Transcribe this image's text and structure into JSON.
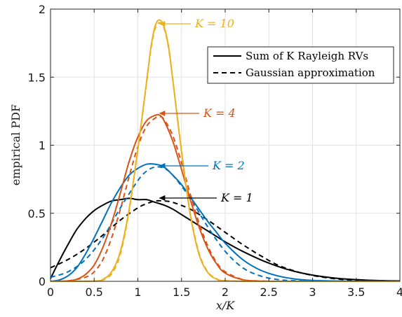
{
  "chart_data": {
    "type": "line",
    "xlabel": "x/K",
    "ylabel": "empirical PDF",
    "xlim": [
      0,
      4
    ],
    "ylim": [
      0,
      2
    ],
    "xticks": [
      0,
      0.5,
      1,
      1.5,
      2,
      2.5,
      3,
      3.5,
      4
    ],
    "xtick_labels": [
      "0",
      "0.5",
      "1",
      "1.5",
      "2",
      "2.5",
      "3",
      "3.5",
      "4"
    ],
    "yticks": [
      0,
      0.5,
      1,
      1.5,
      2
    ],
    "ytick_labels": [
      "0",
      "0.5",
      "1",
      "1.5",
      "2"
    ],
    "grid": true,
    "legend": {
      "placement": "top-right",
      "entries": [
        {
          "label": "Sum of K Rayleigh RVs",
          "style": "solid"
        },
        {
          "label": "Gaussian approximation",
          "style": "dashed"
        }
      ]
    },
    "series": [
      {
        "K": 1,
        "color": "#000000",
        "style": "solid",
        "x": [
          0,
          0.1,
          0.2,
          0.3,
          0.4,
          0.5,
          0.6,
          0.7,
          0.8,
          0.9,
          1.0,
          1.1,
          1.2,
          1.3,
          1.4,
          1.5,
          1.6,
          1.7,
          1.8,
          1.9,
          2.0,
          2.2,
          2.4,
          2.6,
          2.8,
          3.0,
          3.2,
          3.4,
          3.6,
          3.8,
          4.0
        ],
        "y": [
          0.02,
          0.15,
          0.27,
          0.38,
          0.46,
          0.52,
          0.56,
          0.59,
          0.6,
          0.61,
          0.6,
          0.6,
          0.58,
          0.56,
          0.53,
          0.49,
          0.45,
          0.41,
          0.37,
          0.33,
          0.29,
          0.22,
          0.16,
          0.11,
          0.072,
          0.046,
          0.028,
          0.016,
          0.009,
          0.005,
          0.003
        ]
      },
      {
        "K": 1,
        "color": "#000000",
        "style": "dashed",
        "x": [
          0,
          0.2,
          0.4,
          0.6,
          0.8,
          1.0,
          1.1,
          1.2,
          1.3,
          1.4,
          1.6,
          1.8,
          2.0,
          2.2,
          2.4,
          2.6,
          2.8,
          3.0,
          3.2,
          3.4,
          3.6,
          3.8,
          4.0
        ],
        "y": [
          0.1,
          0.16,
          0.24,
          0.34,
          0.45,
          0.54,
          0.57,
          0.59,
          0.59,
          0.58,
          0.53,
          0.45,
          0.36,
          0.27,
          0.19,
          0.12,
          0.075,
          0.043,
          0.023,
          0.011,
          0.005,
          0.002,
          0.001
        ]
      },
      {
        "K": 2,
        "color": "#0072BD",
        "style": "solid",
        "x": [
          0,
          0.1,
          0.2,
          0.3,
          0.4,
          0.5,
          0.6,
          0.7,
          0.8,
          0.9,
          1.0,
          1.1,
          1.2,
          1.3,
          1.4,
          1.5,
          1.6,
          1.7,
          1.8,
          1.9,
          2.0,
          2.2,
          2.4,
          2.6,
          2.8,
          3.0,
          3.2,
          3.4,
          3.6,
          4.0
        ],
        "y": [
          0.0,
          0.01,
          0.04,
          0.1,
          0.2,
          0.32,
          0.45,
          0.58,
          0.69,
          0.78,
          0.83,
          0.86,
          0.86,
          0.84,
          0.78,
          0.71,
          0.62,
          0.53,
          0.44,
          0.36,
          0.28,
          0.16,
          0.083,
          0.04,
          0.017,
          0.007,
          0.003,
          0.001,
          0.0,
          0.0
        ]
      },
      {
        "K": 2,
        "color": "#0072BD",
        "style": "dashed",
        "x": [
          0,
          0.2,
          0.4,
          0.6,
          0.8,
          1.0,
          1.1,
          1.2,
          1.3,
          1.4,
          1.6,
          1.8,
          2.0,
          2.2,
          2.4,
          2.6,
          2.8,
          3.0,
          3.5,
          4.0
        ],
        "y": [
          0.03,
          0.07,
          0.16,
          0.32,
          0.54,
          0.74,
          0.81,
          0.84,
          0.83,
          0.78,
          0.61,
          0.4,
          0.22,
          0.1,
          0.04,
          0.013,
          0.004,
          0.001,
          0.0,
          0.0
        ]
      },
      {
        "K": 4,
        "color": "#D95319",
        "style": "solid",
        "x": [
          0,
          0.2,
          0.3,
          0.4,
          0.5,
          0.6,
          0.7,
          0.8,
          0.9,
          1.0,
          1.1,
          1.2,
          1.25,
          1.3,
          1.4,
          1.5,
          1.6,
          1.7,
          1.8,
          1.9,
          2.0,
          2.2,
          2.4,
          2.6,
          3.0,
          4.0
        ],
        "y": [
          0.0,
          0.003,
          0.015,
          0.05,
          0.12,
          0.25,
          0.43,
          0.65,
          0.88,
          1.06,
          1.18,
          1.22,
          1.22,
          1.18,
          1.03,
          0.82,
          0.6,
          0.4,
          0.24,
          0.13,
          0.06,
          0.012,
          0.002,
          0.0,
          0.0,
          0.0
        ]
      },
      {
        "K": 4,
        "color": "#D95319",
        "style": "dashed",
        "x": [
          0,
          0.2,
          0.4,
          0.5,
          0.6,
          0.7,
          0.8,
          0.9,
          1.0,
          1.1,
          1.2,
          1.25,
          1.3,
          1.4,
          1.5,
          1.6,
          1.7,
          1.8,
          1.9,
          2.0,
          2.2,
          2.4,
          3.0,
          4.0
        ],
        "y": [
          0.0,
          0.003,
          0.03,
          0.07,
          0.16,
          0.32,
          0.53,
          0.77,
          0.99,
          1.14,
          1.2,
          1.21,
          1.19,
          1.07,
          0.87,
          0.64,
          0.43,
          0.26,
          0.14,
          0.07,
          0.013,
          0.002,
          0.0,
          0.0
        ]
      },
      {
        "K": 10,
        "color": "#EDB120",
        "style": "solid",
        "x": [
          0,
          0.5,
          0.6,
          0.7,
          0.8,
          0.9,
          1.0,
          1.1,
          1.15,
          1.2,
          1.25,
          1.3,
          1.35,
          1.4,
          1.5,
          1.6,
          1.7,
          1.8,
          1.9,
          2.0,
          2.5,
          4.0
        ],
        "y": [
          0.0,
          0.002,
          0.015,
          0.07,
          0.22,
          0.53,
          0.97,
          1.47,
          1.72,
          1.88,
          1.92,
          1.87,
          1.73,
          1.48,
          0.95,
          0.49,
          0.2,
          0.065,
          0.017,
          0.004,
          0.0,
          0.0
        ]
      },
      {
        "K": 10,
        "color": "#EDB120",
        "style": "dashed",
        "x": [
          0,
          0.5,
          0.6,
          0.7,
          0.8,
          0.9,
          1.0,
          1.1,
          1.15,
          1.2,
          1.25,
          1.3,
          1.35,
          1.4,
          1.5,
          1.6,
          1.7,
          1.8,
          1.9,
          2.0,
          2.5,
          4.0
        ],
        "y": [
          0.0,
          0.001,
          0.01,
          0.055,
          0.2,
          0.52,
          0.97,
          1.46,
          1.71,
          1.86,
          1.9,
          1.86,
          1.72,
          1.48,
          0.96,
          0.5,
          0.21,
          0.07,
          0.02,
          0.005,
          0.0,
          0.0
        ]
      }
    ],
    "annotations": [
      {
        "text": "K = 10",
        "color": "#EDB120",
        "arrow_to": [
          1.24,
          1.91
        ]
      },
      {
        "text": "K = 4",
        "color": "#D95319",
        "arrow_to": [
          1.24,
          1.22
        ]
      },
      {
        "text": "K = 2",
        "color": "#0072BD",
        "arrow_to": [
          1.24,
          0.85
        ]
      },
      {
        "text": "K = 1",
        "color": "#000000",
        "arrow_to": [
          1.24,
          0.6
        ]
      }
    ]
  }
}
